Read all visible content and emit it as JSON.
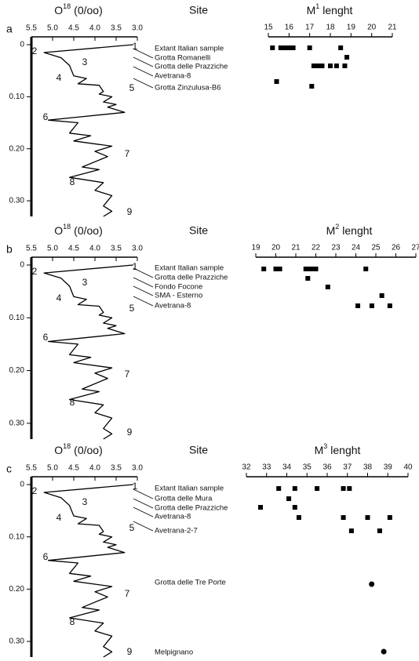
{
  "chart_data": [
    {
      "type": "line",
      "panel": "a",
      "title": "O",
      "title_sup": "18",
      "title_unit": "(0/oo)",
      "color": "#000000",
      "x": [
        3.1,
        5.2,
        4.8,
        4.6,
        4.5,
        4.2,
        4.4,
        3.9,
        3.8,
        3.9,
        3.6,
        3.8,
        3.5,
        3.7,
        3.3,
        4.5,
        5.1,
        4.4,
        4.6,
        4.1,
        4.5,
        3.6,
        4.0,
        3.7,
        4.3,
        3.9,
        4.6,
        3.8,
        4.0,
        3.6,
        3.8,
        3.6,
        3.8
      ],
      "y": [
        0.0,
        0.015,
        0.025,
        0.04,
        0.06,
        0.065,
        0.075,
        0.078,
        0.09,
        0.095,
        0.1,
        0.11,
        0.115,
        0.12,
        0.13,
        0.14,
        0.145,
        0.15,
        0.17,
        0.175,
        0.185,
        0.195,
        0.205,
        0.215,
        0.235,
        0.24,
        0.255,
        0.265,
        0.28,
        0.29,
        0.31,
        0.32,
        0.33
      ],
      "xlim": [
        5.5,
        3.0
      ],
      "xticks": [
        5.5,
        {
          "value": 5.0,
          "label": "5.0"
        },
        4.5,
        {
          "value": 4.0,
          "label": "4.0"
        },
        3.5,
        {
          "value": 3.0,
          "label": "3.0"
        }
      ],
      "ylim": [
        0,
        0.33
      ],
      "yticks": [
        0,
        {
          "value": 0.1,
          "label": "0.10"
        },
        {
          "value": 0.2,
          "label": "0.20"
        },
        {
          "value": 0.3,
          "label": "0.30"
        }
      ],
      "annotations": [
        "1",
        "2",
        "3",
        "4",
        "5",
        "6",
        "7",
        "8",
        "9"
      ]
    },
    {
      "type": "scatter",
      "site_header": "Site",
      "title": "M",
      "title_sup": "1",
      "title_end": "lenght",
      "color": "#000000",
      "xlim": [
        15,
        21
      ],
      "xticks": [
        15,
        16,
        17,
        18,
        19,
        20,
        21
      ],
      "sites": [
        {
          "name": "Extant Italian sample",
          "values": [
            15.2,
            15.6,
            15.8,
            16.0,
            16.2,
            17.0,
            18.5
          ]
        },
        {
          "name": "Grotta Romanelli",
          "values": [
            18.8
          ]
        },
        {
          "name": "Grotta delle Prazziche",
          "values": [
            17.2,
            17.4,
            17.6,
            18.0,
            18.3,
            18.7
          ]
        },
        {
          "name": "Avetrana-8",
          "values": [
            15.4
          ]
        },
        {
          "name": "Grotta Zinzulusa-B6",
          "values": [
            17.1
          ]
        }
      ]
    },
    {
      "type": "line",
      "panel": "b",
      "title": "O",
      "title_sup": "18",
      "title_unit": "(0/oo)",
      "color": "#000000",
      "x": [
        3.1,
        5.2,
        4.8,
        4.6,
        4.5,
        4.2,
        4.4,
        3.9,
        3.8,
        3.9,
        3.6,
        3.8,
        3.5,
        3.7,
        3.3,
        4.5,
        5.1,
        4.4,
        4.6,
        4.1,
        4.5,
        3.6,
        4.0,
        3.7,
        4.3,
        3.9,
        4.6,
        3.8,
        4.0,
        3.6,
        3.8,
        3.6,
        3.8
      ],
      "y": [
        0.0,
        0.015,
        0.025,
        0.04,
        0.06,
        0.065,
        0.075,
        0.078,
        0.09,
        0.095,
        0.1,
        0.11,
        0.115,
        0.12,
        0.13,
        0.14,
        0.145,
        0.15,
        0.17,
        0.175,
        0.185,
        0.195,
        0.205,
        0.215,
        0.235,
        0.24,
        0.255,
        0.265,
        0.28,
        0.29,
        0.31,
        0.32,
        0.33
      ],
      "xlim": [
        5.5,
        3.0
      ],
      "xticks": [
        5.5,
        {
          "value": 5.0,
          "label": "5.0"
        },
        4.5,
        {
          "value": 4.0,
          "label": "4.0"
        },
        3.5,
        {
          "value": 3.0,
          "label": "3.0"
        }
      ],
      "ylim": [
        0,
        0.33
      ],
      "yticks": [
        0,
        {
          "value": 0.1,
          "label": "0.10"
        },
        {
          "value": 0.2,
          "label": "0.20"
        },
        {
          "value": 0.3,
          "label": "0.30"
        }
      ],
      "annotations": [
        "1",
        "2",
        "3",
        "4",
        "5",
        "6",
        "7",
        "8",
        "9"
      ]
    },
    {
      "type": "scatter",
      "site_header": "Site",
      "title": "M",
      "title_sup": "2",
      "title_end": "lenght",
      "color": "#000000",
      "xlim": [
        19,
        27
      ],
      "xticks": [
        19,
        20,
        21,
        22,
        23,
        24,
        25,
        26,
        27
      ],
      "sites": [
        {
          "name": "Extant Italian sample",
          "values": [
            19.4,
            20.0,
            20.2,
            21.5,
            21.7,
            21.9,
            22.0,
            24.5
          ]
        },
        {
          "name": "Grotta delle Prazziche",
          "values": [
            21.6
          ]
        },
        {
          "name": "Fondo Focone",
          "values": [
            22.6
          ]
        },
        {
          "name": "SMA - Esterno",
          "values": [
            25.3
          ]
        },
        {
          "name": "Avetrana-8",
          "values": [
            24.1,
            24.8,
            25.7
          ]
        }
      ]
    },
    {
      "type": "line",
      "panel": "c",
      "title": "O",
      "title_sup": "18",
      "title_unit": "(0/oo)",
      "color": "#000000",
      "x": [
        3.1,
        5.2,
        4.8,
        4.6,
        4.5,
        4.2,
        4.4,
        3.9,
        3.8,
        3.9,
        3.6,
        3.8,
        3.5,
        3.7,
        3.3,
        4.5,
        5.1,
        4.4,
        4.6,
        4.1,
        4.5,
        3.6,
        4.0,
        3.7,
        4.3,
        3.9,
        4.6,
        3.8,
        4.0,
        3.6,
        3.8,
        3.6,
        3.8
      ],
      "y": [
        0.0,
        0.015,
        0.025,
        0.04,
        0.06,
        0.065,
        0.075,
        0.078,
        0.09,
        0.095,
        0.1,
        0.11,
        0.115,
        0.12,
        0.13,
        0.14,
        0.145,
        0.15,
        0.17,
        0.175,
        0.185,
        0.195,
        0.205,
        0.215,
        0.235,
        0.24,
        0.255,
        0.265,
        0.28,
        0.29,
        0.31,
        0.32,
        0.33
      ],
      "xlim": [
        5.5,
        3.0
      ],
      "xticks": [
        5.5,
        {
          "value": 5.0,
          "label": "5.0"
        },
        4.5,
        {
          "value": 4.0,
          "label": "4.0"
        },
        3.5,
        {
          "value": 3.0,
          "label": "3.0"
        }
      ],
      "ylim": [
        0,
        0.33
      ],
      "yticks": [
        0,
        {
          "value": 0.1,
          "label": "0.10"
        },
        {
          "value": 0.2,
          "label": "0.20"
        },
        {
          "value": 0.3,
          "label": "0.30"
        }
      ],
      "annotations": [
        "1",
        "2",
        "3",
        "4",
        "5",
        "6",
        "7",
        "8",
        "9"
      ]
    },
    {
      "type": "scatter",
      "site_header": "Site",
      "title": "M",
      "title_sup": "3",
      "title_end": "lenght",
      "color": "#000000",
      "xlim": [
        32,
        40
      ],
      "xticks": [
        32,
        33,
        34,
        35,
        36,
        37,
        38,
        39,
        40
      ],
      "sites": [
        {
          "name": "Extant Italian sample",
          "values": [
            33.6,
            34.4,
            35.5,
            36.8,
            37.1
          ]
        },
        {
          "name": "Grotta delle Mura",
          "values": [
            34.1
          ]
        },
        {
          "name": "Grotta delle Prazziche",
          "values": [
            32.7,
            34.4
          ]
        },
        {
          "name": "Avetrana-8",
          "values": [
            34.6,
            36.8,
            38.0,
            39.1
          ]
        },
        {
          "name": "Avetrana-2-7",
          "values": [
            37.2,
            38.6
          ]
        },
        {
          "name": "Grotta delle Tre Porte",
          "values": [
            38.2
          ],
          "marker": "circle"
        },
        {
          "name": "Melpignano",
          "values": [
            38.8
          ],
          "marker": "circle"
        }
      ]
    }
  ]
}
